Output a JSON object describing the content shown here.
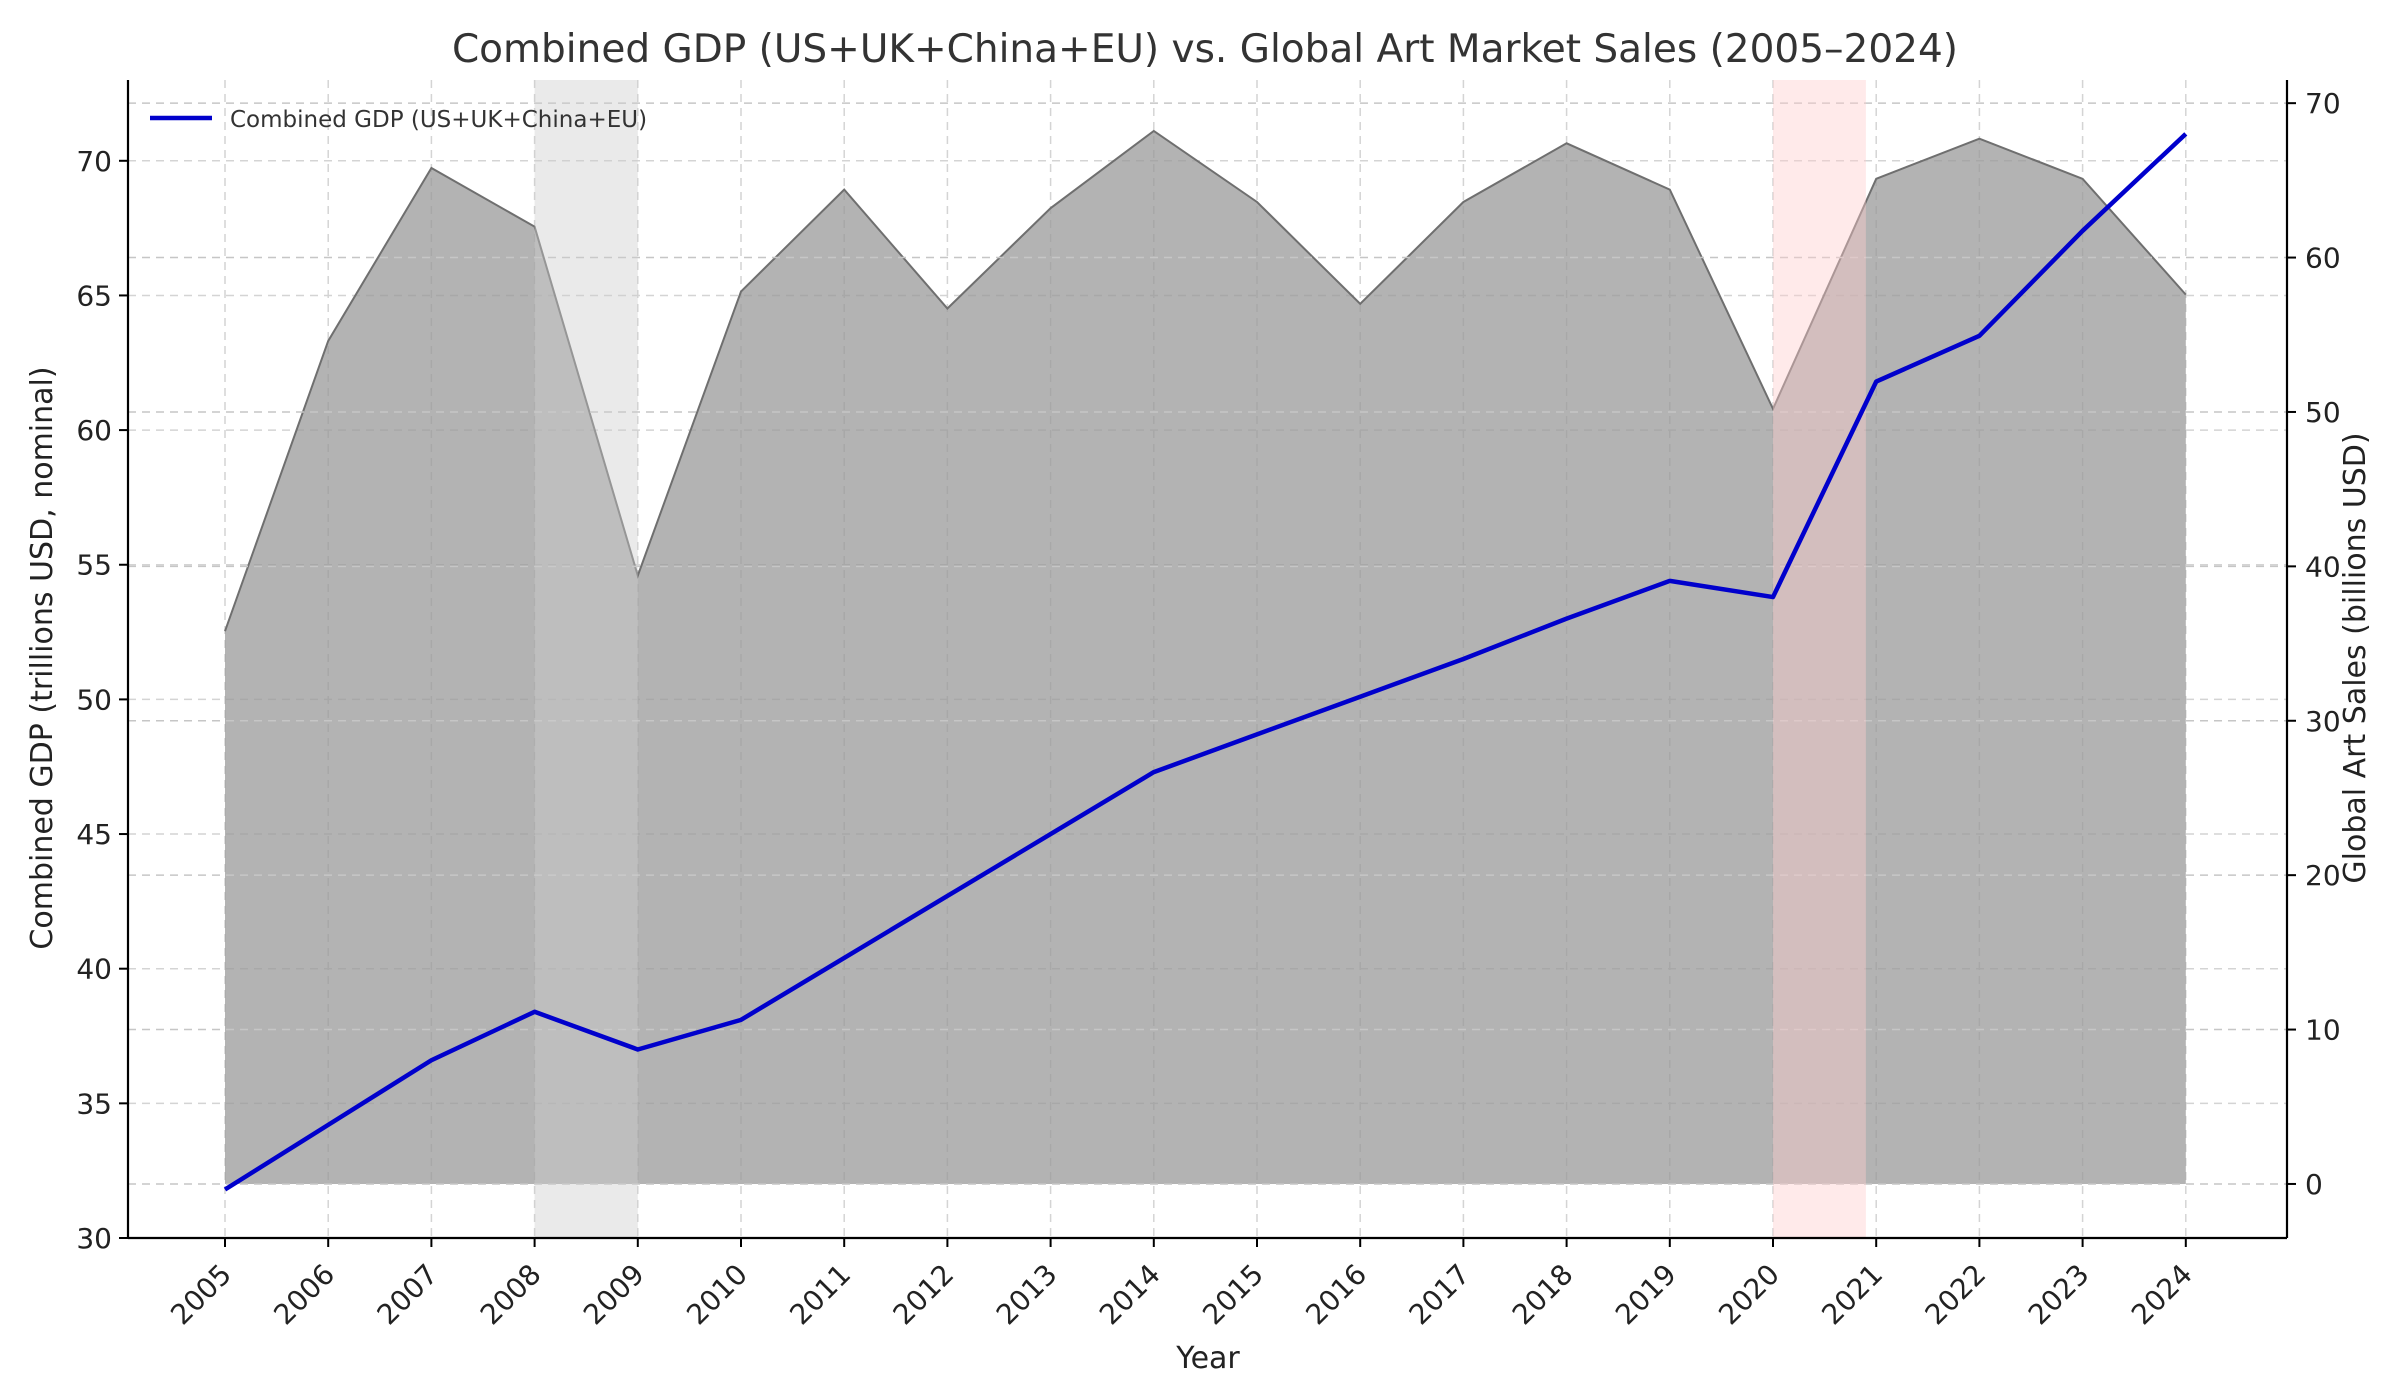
{
  "chart_data": {
    "type": "line",
    "title": "Combined GDP (US+UK+China+EU) vs. Global Art Market Sales (2005–2024)",
    "xlabel": "Year",
    "ylabel_left": "Combined GDP (trillions USD, nominal)",
    "ylabel_right": "Global Art Sales (billions USD)",
    "categories": [
      "2005",
      "2006",
      "2007",
      "2008",
      "2009",
      "2010",
      "2011",
      "2012",
      "2013",
      "2014",
      "2015",
      "2016",
      "2017",
      "2018",
      "2019",
      "2020",
      "2021",
      "2022",
      "2023",
      "2024"
    ],
    "ylim_left": [
      30,
      73
    ],
    "yticks_left": [
      30,
      35,
      40,
      45,
      50,
      55,
      60,
      65,
      70
    ],
    "ylim_right": [
      -3.5,
      71.5
    ],
    "yticks_right": [
      0,
      10,
      20,
      30,
      40,
      50,
      60,
      70
    ],
    "grid": true,
    "legend": {
      "placement": "top-left",
      "entries": [
        "Combined GDP (US+UK+China+EU)"
      ]
    },
    "series": [
      {
        "name": "Combined GDP (US+UK+China+EU)",
        "type": "line",
        "axis": "left",
        "color": "#0000cc",
        "values": [
          31.8,
          34.2,
          36.6,
          38.4,
          37.0,
          38.1,
          40.4,
          42.7,
          45.0,
          47.3,
          48.7,
          50.1,
          51.5,
          53.0,
          54.4,
          53.8,
          61.8,
          63.5,
          67.4,
          71.0
        ]
      },
      {
        "type": "area",
        "axis": "right",
        "color": "#999999",
        "values": [
          35.8,
          54.6,
          65.8,
          62.0,
          39.4,
          57.8,
          64.4,
          56.7,
          63.2,
          68.2,
          63.6,
          57.0,
          63.6,
          67.4,
          64.4,
          50.2,
          65.1,
          67.7,
          65.1,
          57.6
        ]
      }
    ],
    "shaded_spans": [
      {
        "from": "2008",
        "to": "2009",
        "color": "#cccccc"
      },
      {
        "from": "2020",
        "to": "2020.9",
        "color": "#ffcccc"
      }
    ]
  }
}
